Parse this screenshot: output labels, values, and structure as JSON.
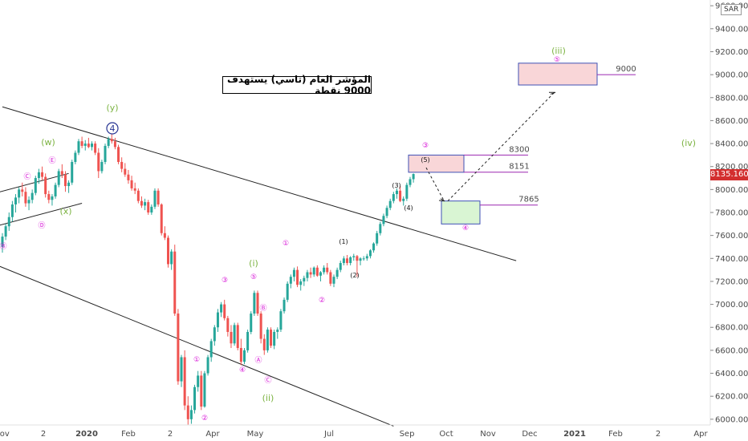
{
  "chart_data": {
    "type": "candlestick",
    "title": "المؤشر العام (تاسي) يستهدف 9000 نقطة",
    "currency": "SAR",
    "last_price": "8135.160",
    "colors": {
      "up": "#26a69a",
      "down": "#ef5350",
      "green_label": "#7cb342",
      "magenta_label": "#d81bd8",
      "price_tag": "#d32f2f"
    },
    "y_axis": {
      "ylim": [
        5950,
        9650
      ],
      "ticks": [
        "9600.000",
        "9400.000",
        "9200.000",
        "9000.000",
        "8800.000",
        "8600.000",
        "8400.000",
        "8200.000",
        "8000.000",
        "7800.000",
        "7600.000",
        "7400.000",
        "7200.000",
        "7000.000",
        "6800.000",
        "6600.000",
        "6400.000",
        "6200.000",
        "6000.000"
      ],
      "tick_values": [
        9600,
        9400,
        9200,
        9000,
        8800,
        8600,
        8400,
        8200,
        8000,
        7800,
        7600,
        7400,
        7200,
        7000,
        6800,
        6600,
        6400,
        6200,
        6000
      ]
    },
    "x_axis": {
      "labels": [
        "Nov",
        "2",
        "2020",
        "Feb",
        "2",
        "Apr",
        "May",
        "Jul",
        "Sep",
        "Oct",
        "Nov",
        "Dec",
        "2021",
        "Feb",
        "2",
        "Apr"
      ],
      "bold_labels": [
        "2020",
        "2021"
      ]
    },
    "candles": [
      [
        7500,
        7620,
        7450,
        7590
      ],
      [
        7590,
        7700,
        7560,
        7680
      ],
      [
        7680,
        7800,
        7640,
        7760
      ],
      [
        7760,
        7900,
        7720,
        7870
      ],
      [
        7870,
        7960,
        7800,
        7930
      ],
      [
        7930,
        8020,
        7880,
        8000
      ],
      [
        8000,
        8060,
        7940,
        7980
      ],
      [
        7980,
        8020,
        7850,
        7880
      ],
      [
        7880,
        7940,
        7820,
        7910
      ],
      [
        7910,
        8000,
        7880,
        7970
      ],
      [
        7970,
        8120,
        7950,
        8100
      ],
      [
        8100,
        8180,
        8050,
        8150
      ],
      [
        8150,
        8200,
        8080,
        8110
      ],
      [
        8110,
        8140,
        7930,
        7960
      ],
      [
        7960,
        7990,
        7880,
        7910
      ],
      [
        7910,
        7960,
        7860,
        7940
      ],
      [
        7940,
        8060,
        7920,
        8040
      ],
      [
        8040,
        8180,
        8020,
        8160
      ],
      [
        8160,
        8220,
        8100,
        8130
      ],
      [
        8130,
        8160,
        7980,
        8030
      ],
      [
        8030,
        8080,
        7970,
        8060
      ],
      [
        8060,
        8260,
        8040,
        8240
      ],
      [
        8240,
        8340,
        8220,
        8320
      ],
      [
        8320,
        8440,
        8300,
        8420
      ],
      [
        8420,
        8460,
        8360,
        8380
      ],
      [
        8380,
        8430,
        8340,
        8400
      ],
      [
        8400,
        8450,
        8360,
        8370
      ],
      [
        8370,
        8420,
        8340,
        8400
      ],
      [
        8400,
        8420,
        8300,
        8320
      ],
      [
        8320,
        8360,
        8100,
        8160
      ],
      [
        8160,
        8260,
        8140,
        8240
      ],
      [
        8240,
        8400,
        8220,
        8380
      ],
      [
        8380,
        8460,
        8360,
        8440
      ],
      [
        8440,
        8480,
        8400,
        8420
      ],
      [
        8420,
        8450,
        8350,
        8370
      ],
      [
        8370,
        8390,
        8220,
        8240
      ],
      [
        8240,
        8280,
        8150,
        8180
      ],
      [
        8180,
        8230,
        8110,
        8130
      ],
      [
        8130,
        8170,
        8050,
        8080
      ],
      [
        8080,
        8120,
        7990,
        8010
      ],
      [
        8010,
        8060,
        7960,
        7990
      ],
      [
        7990,
        8010,
        7880,
        7900
      ],
      [
        7900,
        7940,
        7840,
        7860
      ],
      [
        7860,
        7920,
        7820,
        7890
      ],
      [
        7890,
        7910,
        7780,
        7800
      ],
      [
        7800,
        7870,
        7780,
        7850
      ],
      [
        7850,
        8010,
        7830,
        7990
      ],
      [
        7990,
        8010,
        7850,
        7870
      ],
      [
        7870,
        7880,
        7600,
        7620
      ],
      [
        7620,
        7680,
        7560,
        7580
      ],
      [
        7580,
        7600,
        7320,
        7350
      ],
      [
        7350,
        7480,
        7300,
        7460
      ],
      [
        7460,
        7520,
        6900,
        6920
      ],
      [
        6920,
        6960,
        6300,
        6330
      ],
      [
        6330,
        6560,
        6280,
        6540
      ],
      [
        6540,
        6600,
        6080,
        6120
      ],
      [
        6120,
        6200,
        5950,
        6000
      ],
      [
        6000,
        6120,
        5960,
        6080
      ],
      [
        6080,
        6300,
        6050,
        6280
      ],
      [
        6280,
        6420,
        6240,
        6380
      ],
      [
        6380,
        6420,
        6080,
        6110
      ],
      [
        6110,
        6420,
        6100,
        6400
      ],
      [
        6400,
        6560,
        6380,
        6540
      ],
      [
        6540,
        6700,
        6500,
        6680
      ],
      [
        6680,
        6820,
        6640,
        6800
      ],
      [
        6800,
        6960,
        6760,
        6930
      ],
      [
        6930,
        7020,
        6890,
        7000
      ],
      [
        7000,
        7040,
        6860,
        6880
      ],
      [
        6880,
        6900,
        6720,
        6760
      ],
      [
        6760,
        6820,
        6620,
        6660
      ],
      [
        6660,
        6840,
        6640,
        6820
      ],
      [
        6820,
        6840,
        6600,
        6620
      ],
      [
        6620,
        6700,
        6470,
        6500
      ],
      [
        6500,
        6620,
        6480,
        6600
      ],
      [
        6600,
        6780,
        6580,
        6760
      ],
      [
        6760,
        6940,
        6740,
        6920
      ],
      [
        6920,
        7120,
        6900,
        7100
      ],
      [
        7100,
        7120,
        6900,
        6920
      ],
      [
        6920,
        6940,
        6660,
        6700
      ],
      [
        6700,
        6740,
        6560,
        6600
      ],
      [
        6600,
        6800,
        6580,
        6780
      ],
      [
        6780,
        6800,
        6620,
        6640
      ],
      [
        6640,
        6780,
        6610,
        6760
      ],
      [
        6760,
        6800,
        6700,
        6780
      ],
      [
        6780,
        6960,
        6760,
        6940
      ],
      [
        6940,
        7060,
        6920,
        7040
      ],
      [
        7040,
        7200,
        7020,
        7180
      ],
      [
        7180,
        7260,
        7140,
        7240
      ],
      [
        7240,
        7320,
        7200,
        7300
      ],
      [
        7300,
        7330,
        7150,
        7170
      ],
      [
        7170,
        7220,
        7120,
        7200
      ],
      [
        7200,
        7250,
        7160,
        7230
      ],
      [
        7230,
        7300,
        7200,
        7280
      ],
      [
        7280,
        7320,
        7230,
        7260
      ],
      [
        7260,
        7330,
        7240,
        7320
      ],
      [
        7320,
        7340,
        7240,
        7250
      ],
      [
        7250,
        7290,
        7200,
        7280
      ],
      [
        7280,
        7340,
        7260,
        7320
      ],
      [
        7320,
        7360,
        7260,
        7280
      ],
      [
        7280,
        7300,
        7160,
        7180
      ],
      [
        7180,
        7260,
        7150,
        7240
      ],
      [
        7240,
        7320,
        7220,
        7300
      ],
      [
        7300,
        7380,
        7280,
        7360
      ],
      [
        7360,
        7420,
        7340,
        7400
      ],
      [
        7400,
        7430,
        7340,
        7360
      ],
      [
        7360,
        7420,
        7340,
        7410
      ],
      [
        7410,
        7440,
        7380,
        7420
      ],
      [
        7420,
        7430,
        7240,
        7380
      ],
      [
        7380,
        7410,
        7340,
        7400
      ],
      [
        7400,
        7420,
        7380,
        7400
      ],
      [
        7400,
        7440,
        7380,
        7420
      ],
      [
        7420,
        7480,
        7400,
        7470
      ],
      [
        7470,
        7540,
        7450,
        7530
      ],
      [
        7530,
        7640,
        7510,
        7620
      ],
      [
        7620,
        7720,
        7600,
        7700
      ],
      [
        7700,
        7790,
        7680,
        7770
      ],
      [
        7770,
        7860,
        7750,
        7840
      ],
      [
        7840,
        7920,
        7820,
        7900
      ],
      [
        7900,
        7980,
        7880,
        7960
      ],
      [
        7960,
        8010,
        7920,
        7990
      ],
      [
        7990,
        8030,
        7890,
        7900
      ],
      [
        7900,
        7940,
        7860,
        7920
      ],
      [
        7920,
        8060,
        7900,
        8040
      ],
      [
        8040,
        8110,
        8020,
        8090
      ],
      [
        8090,
        8140,
        8060,
        8135
      ]
    ],
    "trendlines": [
      {
        "name": "upper-channel",
        "from": [
          0,
          8720
        ],
        "to": [
          155,
          7380
        ]
      },
      {
        "name": "lower-channel",
        "from": [
          -5,
          7380
        ],
        "to": [
          118,
          5940
        ]
      },
      {
        "name": "wedge-upper",
        "from": [
          -2,
          7970
        ],
        "to": [
          20,
          8140
        ]
      },
      {
        "name": "wedge-lower",
        "from": [
          -2,
          7680
        ],
        "to": [
          24,
          7880
        ]
      }
    ],
    "targets": [
      {
        "label": "9000",
        "value": 9000
      },
      {
        "label": "8300",
        "value": 8300
      },
      {
        "label": "8151",
        "value": 8151
      },
      {
        "label": "7865",
        "value": 7865
      }
    ],
    "zones": [
      {
        "name": "target-zone-9000",
        "color": "#f9d6d8",
        "border": "#3f51b5",
        "low": 8910,
        "high": 9100
      },
      {
        "name": "resistance-zone-8300",
        "color": "#f9d6d8",
        "border": "#3f51b5",
        "low": 8150,
        "high": 8300
      },
      {
        "name": "support-zone-7865",
        "color": "#d9f5d3",
        "border": "#3f51b5",
        "low": 7700,
        "high": 7900
      }
    ],
    "wave_labels": [
      {
        "text": "(y)",
        "style": "green"
      },
      {
        "text": "(w)",
        "style": "green"
      },
      {
        "text": "(x)",
        "style": "green"
      },
      {
        "text": "(i)",
        "style": "green"
      },
      {
        "text": "(ii)",
        "style": "green"
      },
      {
        "text": "(iii)",
        "style": "green"
      },
      {
        "text": "(iv)",
        "style": "green"
      },
      {
        "text": "4",
        "style": "circle-blue"
      },
      {
        "text": "Ⓔ",
        "style": "magenta"
      },
      {
        "text": "Ⓒ",
        "style": "magenta"
      },
      {
        "text": "Ⓓ",
        "style": "magenta"
      },
      {
        "text": "Ⓑ",
        "style": "magenta"
      },
      {
        "text": "①",
        "style": "magenta"
      },
      {
        "text": "②",
        "style": "magenta"
      },
      {
        "text": "③",
        "style": "magenta"
      },
      {
        "text": "⑤",
        "style": "magenta"
      },
      {
        "text": "Ⓑ",
        "style": "magenta"
      },
      {
        "text": "Ⓐ",
        "style": "magenta"
      },
      {
        "text": "Ⓒ",
        "style": "magenta"
      },
      {
        "text": "④",
        "style": "magenta"
      },
      {
        "text": "①",
        "style": "magenta"
      },
      {
        "text": "②",
        "style": "magenta"
      },
      {
        "text": "③",
        "style": "magenta"
      },
      {
        "text": "④",
        "style": "magenta"
      },
      {
        "text": "⑤",
        "style": "magenta"
      },
      {
        "text": "(1)",
        "style": "black"
      },
      {
        "text": "(2)",
        "style": "black"
      },
      {
        "text": "(3)",
        "style": "black"
      },
      {
        "text": "(4)",
        "style": "black"
      },
      {
        "text": "(5)",
        "style": "black"
      }
    ]
  }
}
